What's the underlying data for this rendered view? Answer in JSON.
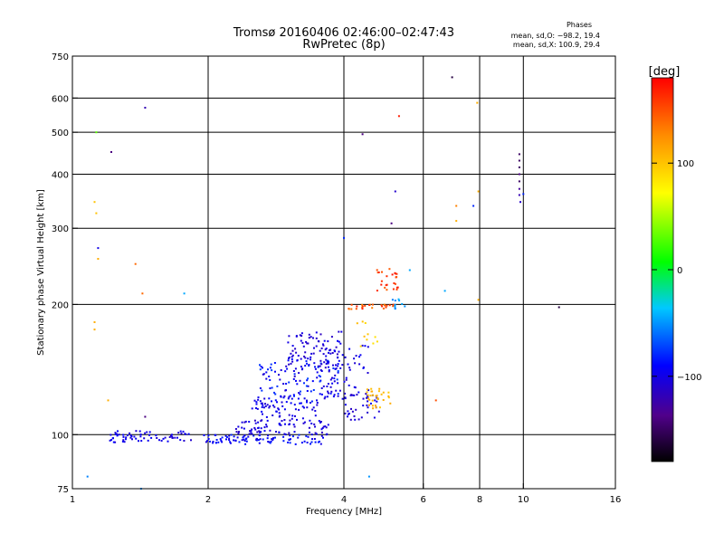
{
  "chart_data": {
    "type": "scatter",
    "title": "Tromsø 20160406 02:46:00–02:47:43",
    "subtitle": "RwPretec (8p)",
    "xlabel": "Frequency [MHz]",
    "ylabel": "Stationary phase Virtual Height [km]",
    "x_scale": "log",
    "y_scale": "log",
    "xlim": [
      1,
      16
    ],
    "ylim": [
      75,
      750
    ],
    "x_ticks": [
      1,
      2,
      4,
      6,
      8,
      10,
      16
    ],
    "y_ticks": [
      75,
      100,
      200,
      300,
      400,
      500,
      600,
      750
    ],
    "x_grid": [
      2,
      4,
      6,
      8,
      10
    ],
    "y_grid": [
      100,
      200,
      300,
      400,
      500,
      600
    ],
    "grid": true,
    "info": {
      "heading": "Phases",
      "line1": "mean, sd,O: −98.2, 19.4",
      "line2": "mean, sd,X: 100.9, 29.4"
    },
    "colorbar": {
      "label": "[deg]",
      "min": -180,
      "max": 180,
      "ticks": [
        {
          "value": 100,
          "label": "100"
        },
        {
          "value": 0,
          "label": "0"
        },
        {
          "value": -100,
          "label": "−100"
        }
      ]
    },
    "clusters": [
      {
        "x": [
          1.2,
          2.0
        ],
        "y": [
          96,
          102
        ],
        "phase": [
          -110,
          -90
        ],
        "n": 70,
        "seed": 11
      },
      {
        "x": [
          2.0,
          3.6
        ],
        "y": [
          95,
          100
        ],
        "phase": [
          -105,
          -80
        ],
        "n": 90,
        "seed": 12
      },
      {
        "x": [
          2.3,
          3.7
        ],
        "y": [
          100,
          108
        ],
        "phase": [
          -115,
          -95
        ],
        "n": 80,
        "seed": 13
      },
      {
        "x": [
          2.5,
          3.6
        ],
        "y": [
          108,
          122
        ],
        "phase": [
          -110,
          -90
        ],
        "n": 60,
        "seed": 14
      },
      {
        "x": [
          2.6,
          3.9
        ],
        "y": [
          118,
          150
        ],
        "phase": [
          -110,
          -70
        ],
        "n": 120,
        "seed": 15
      },
      {
        "x": [
          3.0,
          4.0
        ],
        "y": [
          140,
          175
        ],
        "phase": [
          -115,
          -95
        ],
        "n": 80,
        "seed": 16
      },
      {
        "x": [
          3.6,
          4.6
        ],
        "y": [
          120,
          165
        ],
        "phase": [
          -110,
          -90
        ],
        "n": 60,
        "seed": 17
      },
      {
        "x": [
          4.0,
          4.8
        ],
        "y": [
          108,
          125
        ],
        "phase": [
          -115,
          -95
        ],
        "n": 40,
        "seed": 18
      },
      {
        "x": [
          4.5,
          5.1
        ],
        "y": [
          115,
          128
        ],
        "phase": [
          95,
          115
        ],
        "n": 30,
        "seed": 19
      },
      {
        "x": [
          4.0,
          5.2
        ],
        "y": [
          195,
          200
        ],
        "phase": [
          125,
          170
        ],
        "n": 25,
        "seed": 20
      },
      {
        "x": [
          4.2,
          4.9
        ],
        "y": [
          155,
          185
        ],
        "phase": [
          85,
          110
        ],
        "n": 10,
        "seed": 21
      },
      {
        "x": [
          4.7,
          5.3
        ],
        "y": [
          215,
          242
        ],
        "phase": [
          140,
          175
        ],
        "n": 25,
        "seed": 22
      },
      {
        "x": [
          5.1,
          5.5
        ],
        "y": [
          195,
          208
        ],
        "phase": [
          -60,
          -40
        ],
        "n": 10,
        "seed": 23
      }
    ],
    "points": [
      {
        "x": 1.13,
        "y": 500,
        "phase": 30
      },
      {
        "x": 1.12,
        "y": 345,
        "phase": 100
      },
      {
        "x": 1.13,
        "y": 325,
        "phase": 100
      },
      {
        "x": 1.14,
        "y": 270,
        "phase": -100
      },
      {
        "x": 1.14,
        "y": 255,
        "phase": 110
      },
      {
        "x": 1.12,
        "y": 182,
        "phase": 110
      },
      {
        "x": 1.12,
        "y": 175,
        "phase": 110
      },
      {
        "x": 1.2,
        "y": 120,
        "phase": 110
      },
      {
        "x": 1.08,
        "y": 80,
        "phase": -55
      },
      {
        "x": 1.22,
        "y": 450,
        "phase": -140
      },
      {
        "x": 1.45,
        "y": 570,
        "phase": -120
      },
      {
        "x": 1.38,
        "y": 248,
        "phase": 140
      },
      {
        "x": 1.43,
        "y": 212,
        "phase": 140
      },
      {
        "x": 1.77,
        "y": 212,
        "phase": -45
      },
      {
        "x": 1.45,
        "y": 110,
        "phase": -140
      },
      {
        "x": 1.42,
        "y": 75,
        "phase": -50
      },
      {
        "x": 4.4,
        "y": 495,
        "phase": -140
      },
      {
        "x": 4.55,
        "y": 80,
        "phase": -50
      },
      {
        "x": 5.3,
        "y": 545,
        "phase": 170
      },
      {
        "x": 5.2,
        "y": 365,
        "phase": -110
      },
      {
        "x": 5.1,
        "y": 308,
        "phase": -140
      },
      {
        "x": 4.0,
        "y": 285,
        "phase": -80
      },
      {
        "x": 5.6,
        "y": 240,
        "phase": -45
      },
      {
        "x": 6.4,
        "y": 120,
        "phase": 150
      },
      {
        "x": 6.7,
        "y": 215,
        "phase": -45
      },
      {
        "x": 6.95,
        "y": 670,
        "phase": -160
      },
      {
        "x": 7.1,
        "y": 338,
        "phase": 130
      },
      {
        "x": 7.1,
        "y": 312,
        "phase": 110
      },
      {
        "x": 7.75,
        "y": 338,
        "phase": -80
      },
      {
        "x": 7.9,
        "y": 585,
        "phase": 110
      },
      {
        "x": 7.95,
        "y": 365,
        "phase": 110
      },
      {
        "x": 7.95,
        "y": 205,
        "phase": 110
      },
      {
        "x": 9.8,
        "y": 445,
        "phase": -150
      },
      {
        "x": 9.8,
        "y": 430,
        "phase": -150
      },
      {
        "x": 9.8,
        "y": 415,
        "phase": -150
      },
      {
        "x": 9.8,
        "y": 400,
        "phase": -140
      },
      {
        "x": 9.8,
        "y": 385,
        "phase": -150
      },
      {
        "x": 9.8,
        "y": 370,
        "phase": -130
      },
      {
        "x": 9.8,
        "y": 358,
        "phase": -120
      },
      {
        "x": 9.85,
        "y": 345,
        "phase": -110
      },
      {
        "x": 10.0,
        "y": 360,
        "phase": -80
      },
      {
        "x": 12.0,
        "y": 197,
        "phase": -160
      }
    ]
  }
}
